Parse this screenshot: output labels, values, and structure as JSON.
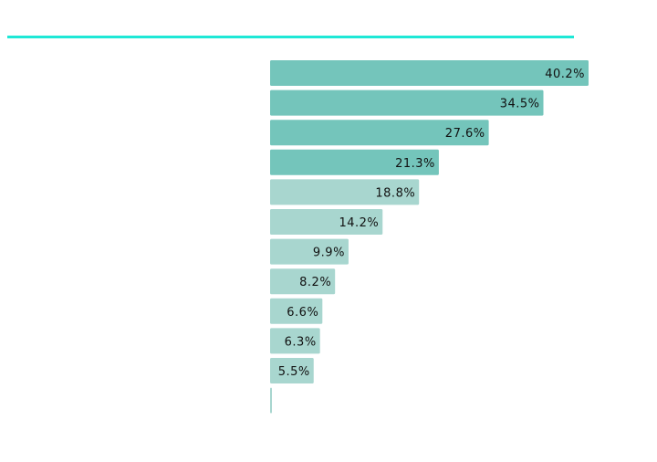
{
  "colors": {
    "accent_line": "#1ee8d6",
    "bar_dark": "#74c5bb",
    "bar_light": "#a8d6cf",
    "label": "#111111"
  },
  "chart_data": {
    "type": "bar",
    "orientation": "horizontal",
    "title": "",
    "xlabel": "",
    "ylabel": "",
    "categories": [],
    "values": [
      40.2,
      34.5,
      27.6,
      21.3,
      18.8,
      14.2,
      9.9,
      8.2,
      6.6,
      6.3,
      5.5,
      0.2
    ],
    "labels": [
      "40.2%",
      "34.5%",
      "27.6%",
      "21.3%",
      "18.8%",
      "14.2%",
      "9.9%",
      "8.2%",
      "6.6%",
      "6.3%",
      "5.5%",
      ""
    ],
    "highlight_top_n": 4,
    "grid": false,
    "xlim": [
      0,
      40.2
    ]
  }
}
